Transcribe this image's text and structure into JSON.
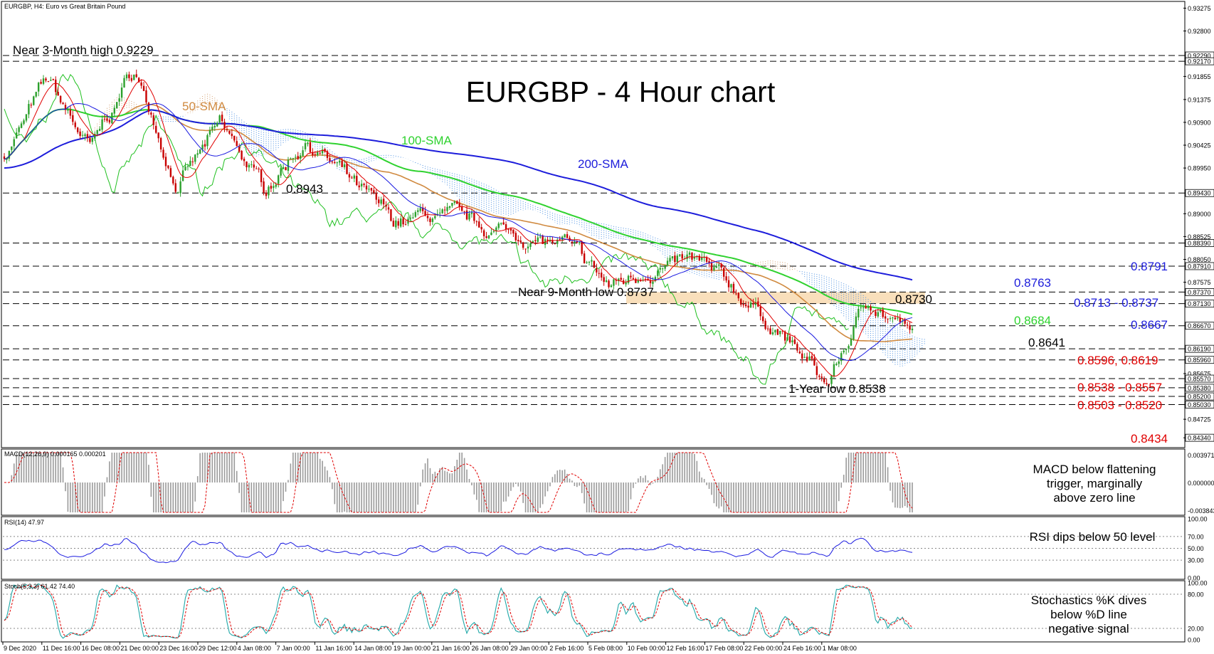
{
  "header": {
    "symbol_info": "EURGBP, H4:  Euro vs Great Britain Pound",
    "title": "EURGBP - 4 Hour chart"
  },
  "main_panel": {
    "y_range": [
      0.8415,
      0.934
    ],
    "y_ticks": [
      "0.93275",
      "0.92800",
      "0.92290",
      "0.92170",
      "0.91855",
      "0.91375",
      "0.90900",
      "0.90425",
      "0.89950",
      "0.89430",
      "0.89000",
      "0.88525",
      "0.88390",
      "0.88050",
      "0.87910",
      "0.87575",
      "0.87370",
      "0.87130",
      "0.86670",
      "0.86190",
      "0.85960",
      "0.85675",
      "0.85570",
      "0.85380",
      "0.85200",
      "0.85030",
      "0.84725",
      "0.84340"
    ],
    "boxed_ticks": [
      "0.92290",
      "0.92170",
      "0.89430",
      "0.88390",
      "0.87910",
      "0.87370",
      "0.87130",
      "0.86670",
      "0.86190",
      "0.85960",
      "0.85570",
      "0.85380",
      "0.85200",
      "0.85030",
      "0.84340"
    ],
    "dashed_levels": [
      0.9229,
      0.9217,
      0.8943,
      0.8839,
      0.8791,
      0.8737,
      0.8713,
      0.8667,
      0.8619,
      0.8596,
      0.8557,
      0.8538,
      0.852,
      0.8503
    ],
    "zone": [
      0.8713,
      0.8737
    ],
    "zone_color": "#f8dcb4",
    "annotations": {
      "near_3m_high": "Near 3-Month high 0.9229",
      "sma50": "50-SMA",
      "sma100": "100-SMA",
      "sma200": "200-SMA",
      "level_08943": "0.8943",
      "near_9m_low": "Near 9-Month low 0.8737",
      "level_08730": "0.8730",
      "level_08641": "0.8641",
      "one_year_low": "1-Year low 0.8538"
    },
    "right_labels": {
      "l8763": "0.8763",
      "l8791": "0.8791",
      "l8713_8737": "0.8713 - 0.8737",
      "l8684": "0.8684",
      "l8667": "0.8667",
      "l8596_8619": "0.8596, 0.8619",
      "l8538_8557": "0.8538 - 0.8557",
      "l8503_8520": "0.8503 - 0.8520",
      "l8434": "0.8434"
    }
  },
  "macd_panel": {
    "header": "MACD(12,26,9) 0.000165 0.000201",
    "ticks": [
      "0.003971",
      "0.000000",
      "-0.003843"
    ],
    "note_line1": "MACD below flattening",
    "note_line2": "trigger, marginally",
    "note_line3": "above zero line"
  },
  "rsi_panel": {
    "header": "RSI(14) 47.97",
    "ticks": [
      "100.00",
      "70.00",
      "50.00",
      "30.00",
      "0.00"
    ],
    "note": "RSI dips below 50 level"
  },
  "stoch_panel": {
    "header": "Stoch(5,3,3) 61.42 74.40",
    "ticks": [
      "100.00",
      "80.00",
      "20.00",
      "0.00"
    ],
    "note_line1": "Stochastics %K dives",
    "note_line2": "below %D line",
    "note_line3": "negative signal"
  },
  "x_axis": {
    "labels": [
      "9 Dec 2020",
      "11 Dec 16:00",
      "16 Dec 08:00",
      "21 Dec 00:00",
      "23 Dec 16:00",
      "29 Dec 12:00",
      "4 Jan 08:00",
      "7 Jan 00:00",
      "11 Jan 16:00",
      "14 Jan 08:00",
      "19 Jan 00:00",
      "21 Jan 16:00",
      "26 Jan 08:00",
      "29 Jan 00:00",
      "2 Feb 16:00",
      "5 Feb 08:00",
      "10 Feb 00:00",
      "12 Feb 16:00",
      "17 Feb 08:00",
      "22 Feb 00:00",
      "24 Feb 16:00",
      "1 Mar 08:00"
    ]
  },
  "colors": {
    "sma50": "#d08a40",
    "sma100": "#2fd22f",
    "sma200": "#1d1ddb",
    "tenkan": "#e00000",
    "kijun": "#1a1ae0",
    "chikou": "#20c020",
    "cloud_bull": "#4a90e2",
    "cloud_bear": "#d2a070",
    "candle_up": "#2ca02c",
    "candle_down": "#c80000",
    "red_label": "#e00000",
    "blue_label": "#1d1ddb",
    "green_label": "#2fd22f"
  },
  "chart_data": {
    "type": "candlestick",
    "symbol": "EURGBP",
    "timeframe": "H4",
    "close_path_keypoints": [
      {
        "x": "9 Dec 2020",
        "y": 0.902
      },
      {
        "x": "11 Dec 16:00",
        "y": 0.9175
      },
      {
        "x": "16 Dec 08:00",
        "y": 0.903
      },
      {
        "x": "21 Dec 00:00",
        "y": 0.92
      },
      {
        "x": "23 Dec 16:00",
        "y": 0.896
      },
      {
        "x": "29 Dec 12:00",
        "y": 0.908
      },
      {
        "x": "4 Jan 08:00",
        "y": 0.895
      },
      {
        "x": "7 Jan 00:00",
        "y": 0.906
      },
      {
        "x": "11 Jan 16:00",
        "y": 0.896
      },
      {
        "x": "14 Jan 08:00",
        "y": 0.888
      },
      {
        "x": "19 Jan 00:00",
        "y": 0.8895
      },
      {
        "x": "21 Jan 16:00",
        "y": 0.887
      },
      {
        "x": "26 Jan 08:00",
        "y": 0.8855
      },
      {
        "x": "29 Jan 00:00",
        "y": 0.883
      },
      {
        "x": "2 Feb 16:00",
        "y": 0.8745
      },
      {
        "x": "5 Feb 08:00",
        "y": 0.879
      },
      {
        "x": "10 Feb 00:00",
        "y": 0.8795
      },
      {
        "x": "12 Feb 16:00",
        "y": 0.873
      },
      {
        "x": "17 Feb 08:00",
        "y": 0.865
      },
      {
        "x": "22 Feb 00:00",
        "y": 0.854
      },
      {
        "x": "24 Feb 16:00",
        "y": 0.8725
      },
      {
        "x": "1 Mar 08:00",
        "y": 0.8641
      }
    ],
    "series": [
      {
        "name": "50-SMA",
        "values": [
          0.905,
          0.9085,
          0.908,
          0.9045,
          0.9,
          0.896,
          0.89,
          0.887,
          0.883,
          0.879,
          0.876,
          0.87,
          0.865,
          0.865
        ]
      },
      {
        "name": "100-SMA",
        "values": [
          0.9,
          0.9035,
          0.9055,
          0.904,
          0.901,
          0.896,
          0.888,
          0.882,
          0.878,
          0.874,
          0.87,
          0.8684
        ]
      },
      {
        "name": "200-SMA",
        "values": [
          0.899,
          0.901,
          0.9025,
          0.9025,
          0.902,
          0.8995,
          0.8945,
          0.889,
          0.8825,
          0.8763
        ]
      }
    ],
    "levels": [
      0.9229,
      0.8943,
      0.8839,
      0.8791,
      0.8763,
      0.8737,
      0.873,
      0.8713,
      0.8684,
      0.8667,
      0.8641,
      0.8619,
      0.8596,
      0.8557,
      0.8538,
      0.852,
      0.8503,
      0.8434
    ],
    "title": "EURGBP - 4 Hour chart",
    "ylim": [
      0.8415,
      0.934
    ]
  }
}
